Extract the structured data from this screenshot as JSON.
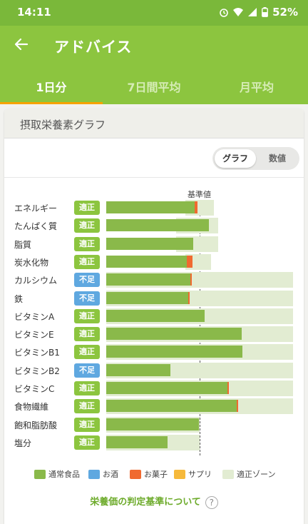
{
  "status": {
    "time": "14:11",
    "battery": "52%"
  },
  "appbar": {
    "title": "アドバイス"
  },
  "tabs": [
    {
      "label": "1日分",
      "active": true
    },
    {
      "label": "7日間平均",
      "active": false
    },
    {
      "label": "月平均",
      "active": false
    }
  ],
  "section": {
    "title": "摂取栄養素グラフ"
  },
  "toggle": {
    "graph": "グラフ",
    "numeric": "数値",
    "selected": "graph"
  },
  "chart_data": {
    "type": "bar",
    "reference_label": "基準値",
    "unit": "fraction of reference value",
    "categories": [
      "エネルギー",
      "たんぱく質",
      "脂質",
      "炭水化物",
      "カルシウム",
      "鉄",
      "ビタミンA",
      "ビタミンE",
      "ビタミンB1",
      "ビタミンB2",
      "ビタミンC",
      "食物繊維",
      "飽和脂肪酸",
      "塩分"
    ],
    "status_labels": [
      "適正",
      "適正",
      "適正",
      "適正",
      "不足",
      "不足",
      "適正",
      "適正",
      "適正",
      "不足",
      "適正",
      "適正",
      "適正",
      "適正"
    ],
    "series": [
      {
        "name": "通常食品",
        "values": [
          0.95,
          1.1,
          0.93,
          0.86,
          0.9,
          0.88,
          1.05,
          1.45,
          1.46,
          0.69,
          1.3,
          1.4,
          0.99,
          0.66
        ]
      },
      {
        "name": "お酒",
        "values": [
          0,
          0,
          0,
          0,
          0,
          0,
          0,
          0,
          0,
          0,
          0,
          0,
          0,
          0
        ]
      },
      {
        "name": "お菓子",
        "values": [
          0.03,
          0,
          0,
          0.06,
          0.01,
          0.01,
          0,
          0,
          0,
          0,
          0.01,
          0.01,
          0,
          0
        ]
      },
      {
        "name": "サプリ",
        "values": [
          0,
          0,
          0,
          0,
          0,
          0,
          0,
          0,
          0,
          0,
          0,
          0,
          0,
          0
        ]
      }
    ],
    "zones": [
      [
        0.85,
        1.15
      ],
      [
        0.75,
        1.2
      ],
      [
        0.75,
        1.2
      ],
      [
        0.85,
        1.12
      ],
      [
        0,
        2.0
      ],
      [
        0,
        2.0
      ],
      [
        0,
        2.0
      ],
      [
        0,
        2.0
      ],
      [
        0,
        2.0
      ],
      [
        0,
        2.0
      ],
      [
        0,
        2.0
      ],
      [
        0,
        2.0
      ],
      [
        0,
        1.0
      ],
      [
        0,
        1.0
      ]
    ],
    "legend": [
      "通常食品",
      "お酒",
      "お菓子",
      "サプリ",
      "適正ゾーン"
    ],
    "colors": {
      "通常食品": "#8ab94a",
      "お酒": "#5fa8e0",
      "お菓子": "#f06a30",
      "サプリ": "#f6b93b",
      "適正ゾーン": "#e2ecd2"
    }
  },
  "footer": {
    "link_label": "栄養価の判定基準について",
    "help_icon": "?"
  }
}
